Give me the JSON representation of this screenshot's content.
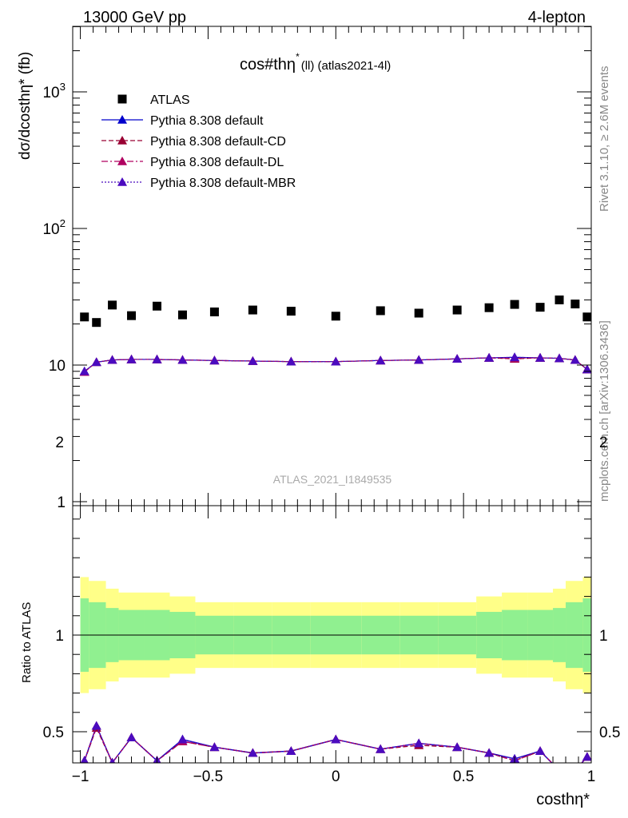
{
  "header": {
    "left": "13000 GeV pp",
    "right": "4-lepton"
  },
  "main_title": "cos#thη* (ll) (atlas2021-4l)",
  "main_title_parts": {
    "base": "cos#thη",
    "sup": "*",
    "sub": "(ll) (atlas2021-4l)"
  },
  "side_text": {
    "rivet": "Rivet 3.1.10, ≥ 2.6M events",
    "mcplots": "mcplots.cern.ch [arXiv:1306.3436]"
  },
  "watermark": "ATLAS_2021_I1849535",
  "legend": [
    {
      "label": "ATLAS",
      "color": "#000000",
      "marker": "square",
      "line": "none"
    },
    {
      "label": "Pythia 8.308 default",
      "color": "#0000cc",
      "marker": "triangle",
      "line": "solid"
    },
    {
      "label": "Pythia 8.308 default-CD",
      "color": "#990033",
      "marker": "triangle",
      "line": "dashed"
    },
    {
      "label": "Pythia 8.308 default-DL",
      "color": "#b00060",
      "marker": "triangle",
      "line": "dashdot"
    },
    {
      "label": "Pythia 8.308 default-MBR",
      "color": "#4b0bbf",
      "marker": "triangle",
      "line": "dotted"
    }
  ],
  "chart_data": [
    {
      "type": "scatter",
      "title": "cos#thη* (ll) (atlas2021-4l)",
      "ylabel": "dσ/dcosthη* (fb)",
      "xlabel": "costhη*",
      "yscale": "log",
      "xlim": [
        -1.03,
        1.0
      ],
      "ylim": [
        0.9,
        3000
      ],
      "y_tick_labels": [
        "1",
        "10",
        "10^2",
        "10^3"
      ],
      "x": [
        -0.984,
        -0.937,
        -0.875,
        -0.8,
        -0.7,
        -0.6,
        -0.475,
        -0.325,
        -0.175,
        0.0,
        0.175,
        0.325,
        0.475,
        0.6,
        0.7,
        0.8,
        0.875,
        0.937,
        0.984
      ],
      "series": [
        {
          "name": "ATLAS",
          "values": [
            22.5,
            20.5,
            27.5,
            23.0,
            27.0,
            23.3,
            24.5,
            25.3,
            24.8,
            22.8,
            25.0,
            24.0,
            25.3,
            26.3,
            27.8,
            26.5,
            30.0,
            28.0,
            22.5
          ]
        },
        {
          "name": "Pythia 8.308 default",
          "values": [
            9.0,
            10.5,
            10.9,
            11.0,
            11.0,
            10.9,
            10.8,
            10.7,
            10.6,
            10.6,
            10.8,
            10.9,
            11.1,
            11.3,
            11.4,
            11.3,
            11.2,
            10.9,
            9.3
          ]
        },
        {
          "name": "Pythia 8.308 default-CD",
          "values": [
            8.9,
            10.5,
            10.9,
            11.0,
            11.0,
            10.9,
            10.8,
            10.7,
            10.6,
            10.6,
            10.8,
            10.9,
            11.1,
            11.3,
            11.1,
            11.3,
            11.2,
            10.9,
            9.3
          ]
        },
        {
          "name": "Pythia 8.308 default-DL",
          "values": [
            8.9,
            10.5,
            10.9,
            11.0,
            11.0,
            10.9,
            10.8,
            10.7,
            10.6,
            10.6,
            10.8,
            10.9,
            11.1,
            11.3,
            11.2,
            11.3,
            11.2,
            10.9,
            9.3
          ]
        },
        {
          "name": "Pythia 8.308 default-MBR",
          "values": [
            9.0,
            10.5,
            10.9,
            11.0,
            11.0,
            10.9,
            10.8,
            10.7,
            10.6,
            10.6,
            10.8,
            10.9,
            11.1,
            11.3,
            11.4,
            11.3,
            11.2,
            10.9,
            9.3
          ]
        }
      ]
    },
    {
      "type": "line",
      "ylabel": "Ratio to ATLAS",
      "xlabel": "costhη*",
      "xlim": [
        -1.03,
        1.0
      ],
      "ylim": [
        0.35,
        2.35
      ],
      "y_tick_labels": [
        "0.5",
        "1",
        "2"
      ],
      "x_tick_labels": [
        "−1",
        "−0.5",
        "0",
        "0.5",
        "1"
      ],
      "x_edges": [
        -1.0,
        -0.967,
        -0.9,
        -0.85,
        -0.75,
        -0.65,
        -0.55,
        -0.4,
        -0.25,
        -0.1,
        0.1,
        0.25,
        0.4,
        0.55,
        0.65,
        0.75,
        0.85,
        0.9,
        0.967,
        1.0
      ],
      "band_inner": [
        0.19,
        0.17,
        0.14,
        0.13,
        0.13,
        0.12,
        0.1,
        0.1,
        0.1,
        0.1,
        0.1,
        0.1,
        0.1,
        0.12,
        0.13,
        0.13,
        0.14,
        0.17,
        0.19
      ],
      "band_outer": [
        0.3,
        0.28,
        0.24,
        0.22,
        0.22,
        0.2,
        0.17,
        0.17,
        0.17,
        0.17,
        0.17,
        0.17,
        0.17,
        0.2,
        0.22,
        0.22,
        0.24,
        0.28,
        0.3
      ],
      "x": [
        -0.984,
        -0.937,
        -0.875,
        -0.8,
        -0.7,
        -0.6,
        -0.475,
        -0.325,
        -0.175,
        0.0,
        0.175,
        0.325,
        0.475,
        0.6,
        0.7,
        0.8,
        0.875,
        0.937,
        0.984
      ],
      "series": [
        {
          "name": "Pythia 8.308 default",
          "values": [
            0.35,
            0.53,
            0.34,
            0.47,
            0.35,
            0.46,
            0.42,
            0.39,
            0.4,
            0.46,
            0.41,
            0.44,
            0.42,
            0.39,
            0.36,
            0.4,
            0.3,
            0.3,
            0.37
          ]
        },
        {
          "name": "Pythia 8.308 default-CD",
          "values": [
            0.35,
            0.52,
            0.34,
            0.47,
            0.35,
            0.45,
            0.42,
            0.39,
            0.4,
            0.46,
            0.41,
            0.43,
            0.42,
            0.39,
            0.35,
            0.4,
            0.3,
            0.3,
            0.37
          ]
        },
        {
          "name": "Pythia 8.308 default-DL",
          "values": [
            0.35,
            0.53,
            0.34,
            0.47,
            0.35,
            0.45,
            0.42,
            0.39,
            0.4,
            0.46,
            0.41,
            0.44,
            0.42,
            0.39,
            0.35,
            0.4,
            0.3,
            0.3,
            0.37
          ]
        },
        {
          "name": "Pythia 8.308 default-MBR",
          "values": [
            0.35,
            0.53,
            0.34,
            0.47,
            0.35,
            0.46,
            0.42,
            0.39,
            0.4,
            0.46,
            0.41,
            0.44,
            0.42,
            0.39,
            0.36,
            0.4,
            0.3,
            0.3,
            0.37
          ]
        }
      ],
      "reference_line": 1.0
    }
  ]
}
